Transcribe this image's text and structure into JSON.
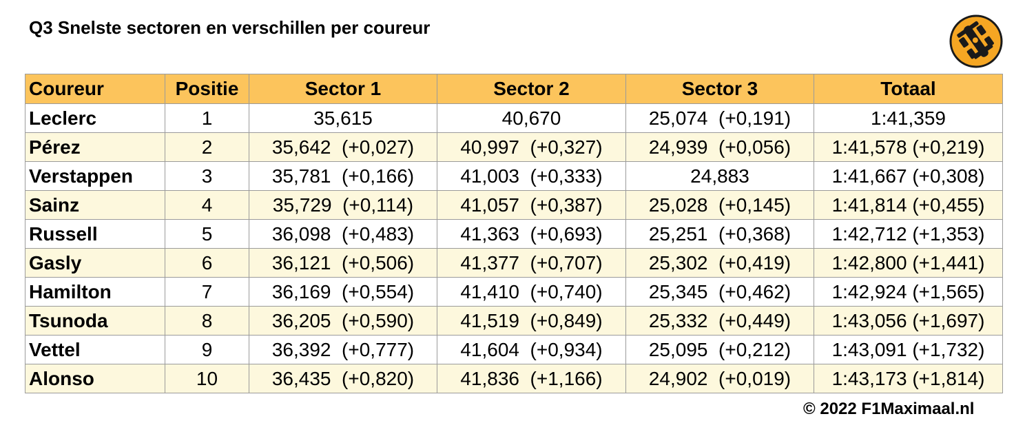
{
  "title": "Q3 Snelste sectoren en verschillen per coureur",
  "headers": [
    "Coureur",
    "Positie",
    "Sector 1",
    "Sector 2",
    "Sector 3",
    "Totaal"
  ],
  "rows": [
    {
      "driver": "Leclerc",
      "pos": "1",
      "s1": "35,615",
      "s2": "40,670",
      "s3": "25,074  (+0,191)",
      "total": "1:41,359"
    },
    {
      "driver": "Pérez",
      "pos": "2",
      "s1": "35,642  (+0,027)",
      "s2": "40,997  (+0,327)",
      "s3": "24,939  (+0,056)",
      "total": "1:41,578 (+0,219)"
    },
    {
      "driver": "Verstappen",
      "pos": "3",
      "s1": "35,781  (+0,166)",
      "s2": "41,003  (+0,333)",
      "s3": "24,883",
      "total": "1:41,667 (+0,308)"
    },
    {
      "driver": "Sainz",
      "pos": "4",
      "s1": "35,729  (+0,114)",
      "s2": "41,057  (+0,387)",
      "s3": "25,028  (+0,145)",
      "total": "1:41,814 (+0,455)"
    },
    {
      "driver": "Russell",
      "pos": "5",
      "s1": "36,098  (+0,483)",
      "s2": "41,363  (+0,693)",
      "s3": "25,251  (+0,368)",
      "total": "1:42,712 (+1,353)"
    },
    {
      "driver": "Gasly",
      "pos": "6",
      "s1": "36,121  (+0,506)",
      "s2": "41,377  (+0,707)",
      "s3": "25,302  (+0,419)",
      "total": "1:42,800 (+1,441)"
    },
    {
      "driver": "Hamilton",
      "pos": "7",
      "s1": "36,169  (+0,554)",
      "s2": "41,410  (+0,740)",
      "s3": "25,345  (+0,462)",
      "total": "1:42,924 (+1,565)"
    },
    {
      "driver": "Tsunoda",
      "pos": "8",
      "s1": "36,205  (+0,590)",
      "s2": "41,519  (+0,849)",
      "s3": "25,332  (+0,449)",
      "total": "1:43,056 (+1,697)"
    },
    {
      "driver": "Vettel",
      "pos": "9",
      "s1": "36,392  (+0,777)",
      "s2": "41,604  (+0,934)",
      "s3": "25,095  (+0,212)",
      "total": "1:43,091 (+1,732)"
    },
    {
      "driver": "Alonso",
      "pos": "10",
      "s1": "36,435  (+0,820)",
      "s2": "41,836  (+1,166)",
      "s3": "24,902  (+0,019)",
      "total": "1:43,173 (+1,814)"
    }
  ],
  "copyright": "© 2022 F1Maximaal.nl",
  "logo": {
    "icon": "race-car-icon",
    "color": "#f5a623"
  },
  "colors": {
    "header_bg": "#fcc45c",
    "alt_row_bg": "#fdf8dd",
    "border": "#9a9a9a"
  }
}
